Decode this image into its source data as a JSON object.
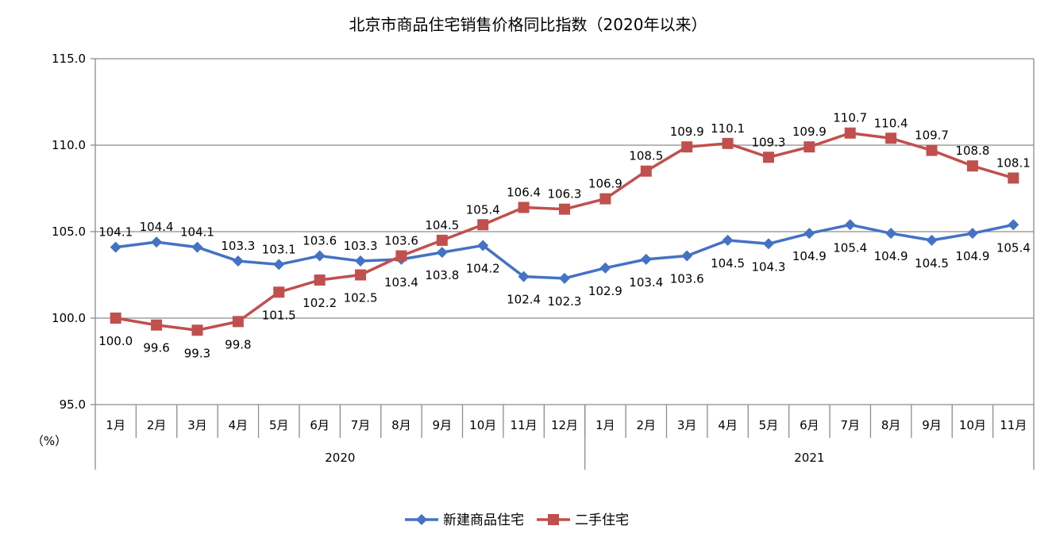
{
  "chart_data": {
    "type": "line",
    "title": "北京市商品住宅销售价格同比指数（2020年以来）",
    "ylabel": "（%）",
    "ylim": [
      95.0,
      115.0
    ],
    "yticks": [
      "95.0",
      "100.0",
      "105.0",
      "110.0",
      "115.0"
    ],
    "grid": true,
    "legend_position": "bottom",
    "categories": [
      "1月",
      "2月",
      "3月",
      "4月",
      "5月",
      "6月",
      "7月",
      "8月",
      "9月",
      "10月",
      "11月",
      "12月",
      "1月",
      "2月",
      "3月",
      "4月",
      "5月",
      "6月",
      "7月",
      "8月",
      "9月",
      "10月",
      "11月"
    ],
    "groups": [
      {
        "label": "2020",
        "start": 0,
        "end": 11
      },
      {
        "label": "2021",
        "start": 12,
        "end": 22
      }
    ],
    "series": [
      {
        "name": "新建商品住宅",
        "color": "#4472C4",
        "marker": "diamond",
        "values": [
          104.1,
          104.4,
          104.1,
          103.3,
          103.1,
          103.6,
          103.3,
          103.4,
          103.8,
          104.2,
          102.4,
          102.3,
          102.9,
          103.4,
          103.6,
          104.5,
          104.3,
          104.9,
          105.4,
          104.9,
          104.5,
          104.9,
          105.4
        ]
      },
      {
        "name": "二手住宅",
        "color": "#C0504D",
        "marker": "square",
        "values": [
          100.0,
          99.6,
          99.3,
          99.8,
          101.5,
          102.2,
          102.5,
          103.6,
          104.5,
          105.4,
          106.4,
          106.3,
          106.9,
          108.5,
          109.9,
          110.1,
          109.3,
          109.9,
          110.7,
          110.4,
          109.7,
          108.8,
          108.1
        ]
      }
    ]
  }
}
